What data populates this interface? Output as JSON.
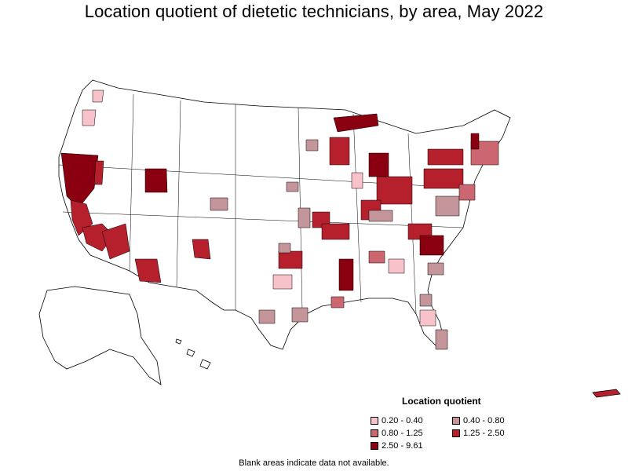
{
  "title": "Location quotient of dietetic technicians, by area, May 2022",
  "legend": {
    "title": "Location quotient",
    "items": [
      {
        "label": "0.20 - 0.40",
        "color": "#f7c2c9"
      },
      {
        "label": "0.40 - 0.80",
        "color": "#c4959b"
      },
      {
        "label": "0.80 - 1.25",
        "color": "#cc6670"
      },
      {
        "label": "1.25 - 2.50",
        "color": "#b5202c"
      },
      {
        "label": "2.50 - 9.61",
        "color": "#8b0010"
      }
    ]
  },
  "footnote": "Blank areas indicate data not available.",
  "colors": {
    "border": "#000000",
    "blank": "#ffffff"
  }
}
